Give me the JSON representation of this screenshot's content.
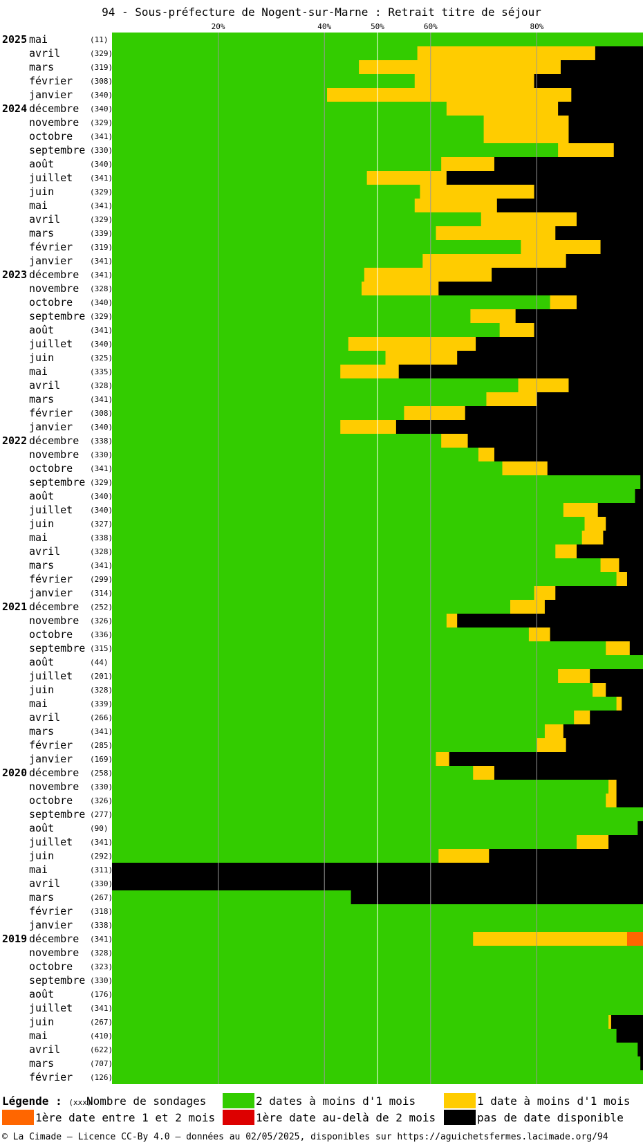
{
  "title": "94 - Sous-préfecture de Nogent-sur-Marne : Retrait titre de séjour",
  "chart_data": {
    "type": "bar",
    "orientation": "horizontal-stacked-percent",
    "x_ticks": [
      "20%",
      "40%",
      "50%",
      "60%",
      "80%"
    ],
    "x_tick_values": [
      20,
      40,
      50,
      60,
      80
    ],
    "xlim": [
      0,
      100
    ],
    "colors": {
      "green": "#33cc00",
      "yellow": "#ffcc00",
      "orange": "#ff6600",
      "red": "#dd0000",
      "black": "#000000"
    },
    "rows": [
      {
        "year": "2025",
        "month": "mai",
        "count": "(11)",
        "v": [
          100,
          0,
          0,
          0,
          0
        ]
      },
      {
        "year": "",
        "month": "avril",
        "count": "(329)",
        "v": [
          57.5,
          33.5,
          0,
          0,
          9
        ]
      },
      {
        "year": "",
        "month": "mars",
        "count": "(319)",
        "v": [
          46.5,
          38,
          0,
          0,
          15.5
        ]
      },
      {
        "year": "",
        "month": "février",
        "count": "(308)",
        "v": [
          57,
          22.5,
          0,
          0,
          20.5
        ]
      },
      {
        "year": "",
        "month": "janvier",
        "count": "(340)",
        "v": [
          40.5,
          46,
          0,
          0,
          13.5
        ]
      },
      {
        "year": "2024",
        "month": "décembre",
        "count": "(340)",
        "v": [
          63,
          21,
          0,
          0,
          16
        ]
      },
      {
        "year": "",
        "month": "novembre",
        "count": "(329)",
        "v": [
          70,
          16,
          0,
          0,
          14
        ]
      },
      {
        "year": "",
        "month": "octobre",
        "count": "(341)",
        "v": [
          70,
          16,
          0,
          0,
          14
        ]
      },
      {
        "year": "",
        "month": "septembre",
        "count": "(330)",
        "v": [
          84,
          10.5,
          0,
          0,
          5.5
        ]
      },
      {
        "year": "",
        "month": "août",
        "count": "(340)",
        "v": [
          62,
          10,
          0,
          0,
          28
        ]
      },
      {
        "year": "",
        "month": "juillet",
        "count": "(341)",
        "v": [
          48,
          15,
          0,
          0,
          37
        ]
      },
      {
        "year": "",
        "month": "juin",
        "count": "(329)",
        "v": [
          58,
          21.5,
          0,
          0,
          20.5
        ]
      },
      {
        "year": "",
        "month": "mai",
        "count": "(341)",
        "v": [
          57,
          15.5,
          0,
          0,
          27.5
        ]
      },
      {
        "year": "",
        "month": "avril",
        "count": "(329)",
        "v": [
          69.5,
          18,
          0,
          0,
          12.5
        ]
      },
      {
        "year": "",
        "month": "mars",
        "count": "(339)",
        "v": [
          61,
          22.5,
          0,
          0,
          16.5
        ]
      },
      {
        "year": "",
        "month": "février",
        "count": "(319)",
        "v": [
          77,
          15,
          0,
          0,
          8
        ]
      },
      {
        "year": "",
        "month": "janvier",
        "count": "(341)",
        "v": [
          58.5,
          27,
          0,
          0,
          14.5
        ]
      },
      {
        "year": "2023",
        "month": "décembre",
        "count": "(341)",
        "v": [
          47.5,
          24,
          0,
          0,
          28.5
        ]
      },
      {
        "year": "",
        "month": "novembre",
        "count": "(328)",
        "v": [
          47,
          14.5,
          0,
          0,
          38.5
        ]
      },
      {
        "year": "",
        "month": "octobre",
        "count": "(340)",
        "v": [
          82.5,
          5,
          0,
          0,
          12.5
        ]
      },
      {
        "year": "",
        "month": "septembre",
        "count": "(329)",
        "v": [
          67.5,
          8.5,
          0,
          0,
          24
        ]
      },
      {
        "year": "",
        "month": "août",
        "count": "(341)",
        "v": [
          73,
          6.5,
          0,
          0,
          20.5
        ]
      },
      {
        "year": "",
        "month": "juillet",
        "count": "(340)",
        "v": [
          44.5,
          24,
          0,
          0,
          31.5
        ]
      },
      {
        "year": "",
        "month": "juin",
        "count": "(325)",
        "v": [
          51.5,
          13.5,
          0,
          0,
          35
        ]
      },
      {
        "year": "",
        "month": "mai",
        "count": "(335)",
        "v": [
          43,
          11,
          0,
          0,
          46
        ]
      },
      {
        "year": "",
        "month": "avril",
        "count": "(328)",
        "v": [
          76.5,
          9.5,
          0,
          0,
          14
        ]
      },
      {
        "year": "",
        "month": "mars",
        "count": "(341)",
        "v": [
          70.5,
          9.5,
          0,
          0,
          20
        ]
      },
      {
        "year": "",
        "month": "février",
        "count": "(308)",
        "v": [
          55,
          11.5,
          0,
          0,
          33.5
        ]
      },
      {
        "year": "",
        "month": "janvier",
        "count": "(340)",
        "v": [
          43,
          10.5,
          0,
          0,
          46.5
        ]
      },
      {
        "year": "2022",
        "month": "décembre",
        "count": "(338)",
        "v": [
          62,
          5,
          0,
          0,
          33
        ]
      },
      {
        "year": "",
        "month": "novembre",
        "count": "(330)",
        "v": [
          69,
          3,
          0,
          0,
          28
        ]
      },
      {
        "year": "",
        "month": "octobre",
        "count": "(341)",
        "v": [
          73.5,
          8.5,
          0,
          0,
          18
        ]
      },
      {
        "year": "",
        "month": "septembre",
        "count": "(329)",
        "v": [
          99.5,
          0,
          0,
          0,
          0.5
        ]
      },
      {
        "year": "",
        "month": "août",
        "count": "(340)",
        "v": [
          98.5,
          0,
          0,
          0,
          1.5
        ]
      },
      {
        "year": "",
        "month": "juillet",
        "count": "(340)",
        "v": [
          85,
          6.5,
          0,
          0,
          8.5
        ]
      },
      {
        "year": "",
        "month": "juin",
        "count": "(327)",
        "v": [
          89,
          4,
          0,
          0,
          7
        ]
      },
      {
        "year": "",
        "month": "mai",
        "count": "(338)",
        "v": [
          88.5,
          4,
          0,
          0,
          7.5
        ]
      },
      {
        "year": "",
        "month": "avril",
        "count": "(328)",
        "v": [
          83.5,
          4,
          0,
          0,
          12.5
        ]
      },
      {
        "year": "",
        "month": "mars",
        "count": "(341)",
        "v": [
          92,
          3.5,
          0,
          0,
          4.5
        ]
      },
      {
        "year": "",
        "month": "février",
        "count": "(299)",
        "v": [
          95,
          2,
          0,
          0,
          3
        ]
      },
      {
        "year": "",
        "month": "janvier",
        "count": "(314)",
        "v": [
          79.5,
          4,
          0,
          0,
          16.5
        ]
      },
      {
        "year": "2021",
        "month": "décembre",
        "count": "(252)",
        "v": [
          75,
          6.5,
          0,
          0,
          18.5
        ]
      },
      {
        "year": "",
        "month": "novembre",
        "count": "(326)",
        "v": [
          63,
          2,
          0,
          0,
          35
        ]
      },
      {
        "year": "",
        "month": "octobre",
        "count": "(336)",
        "v": [
          78.5,
          4,
          0,
          0,
          17.5
        ]
      },
      {
        "year": "",
        "month": "septembre",
        "count": "(315)",
        "v": [
          93,
          4.5,
          0,
          0,
          2.5
        ]
      },
      {
        "year": "",
        "month": "août",
        "count": "(44)",
        "v": [
          100,
          0,
          0,
          0,
          0
        ]
      },
      {
        "year": "",
        "month": "juillet",
        "count": "(201)",
        "v": [
          84,
          6,
          0,
          0,
          10
        ]
      },
      {
        "year": "",
        "month": "juin",
        "count": "(328)",
        "v": [
          90.5,
          2.5,
          0,
          0,
          7
        ]
      },
      {
        "year": "",
        "month": "mai",
        "count": "(339)",
        "v": [
          95,
          1,
          0,
          0,
          4
        ]
      },
      {
        "year": "",
        "month": "avril",
        "count": "(266)",
        "v": [
          87,
          3,
          0,
          0,
          10
        ]
      },
      {
        "year": "",
        "month": "mars",
        "count": "(341)",
        "v": [
          81.5,
          3.5,
          0,
          0,
          15
        ]
      },
      {
        "year": "",
        "month": "février",
        "count": "(285)",
        "v": [
          80,
          5.5,
          0,
          0,
          14.5
        ]
      },
      {
        "year": "",
        "month": "janvier",
        "count": "(169)",
        "v": [
          61,
          2.5,
          0,
          0,
          36.5
        ]
      },
      {
        "year": "2020",
        "month": "décembre",
        "count": "(258)",
        "v": [
          68,
          4,
          0,
          0,
          28
        ]
      },
      {
        "year": "",
        "month": "novembre",
        "count": "(330)",
        "v": [
          93.5,
          1.5,
          0,
          0,
          5
        ]
      },
      {
        "year": "",
        "month": "octobre",
        "count": "(326)",
        "v": [
          93,
          2,
          0,
          0,
          5
        ]
      },
      {
        "year": "",
        "month": "septembre",
        "count": "(277)",
        "v": [
          100,
          0,
          0,
          0,
          0
        ]
      },
      {
        "year": "",
        "month": "août",
        "count": "(90)",
        "v": [
          99,
          0,
          0,
          0,
          1
        ]
      },
      {
        "year": "",
        "month": "juillet",
        "count": "(341)",
        "v": [
          87.5,
          6,
          0,
          0,
          6.5
        ]
      },
      {
        "year": "",
        "month": "juin",
        "count": "(292)",
        "v": [
          61.5,
          9.5,
          0,
          0,
          29
        ]
      },
      {
        "year": "",
        "month": "mai",
        "count": "(311)",
        "v": [
          0,
          0,
          0,
          0,
          100
        ]
      },
      {
        "year": "",
        "month": "avril",
        "count": "(330)",
        "v": [
          0,
          0,
          0,
          0,
          100
        ]
      },
      {
        "year": "",
        "month": "mars",
        "count": "(267)",
        "v": [
          45,
          0,
          0,
          0,
          55
        ]
      },
      {
        "year": "",
        "month": "février",
        "count": "(318)",
        "v": [
          100,
          0,
          0,
          0,
          0
        ]
      },
      {
        "year": "",
        "month": "janvier",
        "count": "(338)",
        "v": [
          100,
          0,
          0,
          0,
          0
        ]
      },
      {
        "year": "2019",
        "month": "décembre",
        "count": "(341)",
        "v": [
          68,
          29,
          3,
          0,
          0
        ]
      },
      {
        "year": "",
        "month": "novembre",
        "count": "(328)",
        "v": [
          100,
          0,
          0,
          0,
          0
        ]
      },
      {
        "year": "",
        "month": "octobre",
        "count": "(323)",
        "v": [
          100,
          0,
          0,
          0,
          0
        ]
      },
      {
        "year": "",
        "month": "septembre",
        "count": "(330)",
        "v": [
          100,
          0,
          0,
          0,
          0
        ]
      },
      {
        "year": "",
        "month": "août",
        "count": "(176)",
        "v": [
          100,
          0,
          0,
          0,
          0
        ]
      },
      {
        "year": "",
        "month": "juillet",
        "count": "(341)",
        "v": [
          100,
          0,
          0,
          0,
          0
        ]
      },
      {
        "year": "",
        "month": "juin",
        "count": "(267)",
        "v": [
          93.5,
          0.5,
          0,
          0,
          6
        ]
      },
      {
        "year": "",
        "month": "mai",
        "count": "(410)",
        "v": [
          95,
          0,
          0,
          0,
          5
        ]
      },
      {
        "year": "",
        "month": "avril",
        "count": "(622)",
        "v": [
          99,
          0,
          0,
          0,
          1
        ]
      },
      {
        "year": "",
        "month": "mars",
        "count": "(707)",
        "v": [
          99.5,
          0,
          0,
          0,
          0.5
        ]
      },
      {
        "year": "",
        "month": "février",
        "count": "(126)",
        "v": [
          100,
          0,
          0,
          0,
          0
        ]
      }
    ]
  },
  "legend": {
    "title": "Légende :",
    "count_hint": "(xxx)",
    "count_label": "Nombre de sondages",
    "items": [
      {
        "label": "2 dates à moins d'1 mois",
        "color": "#33cc00"
      },
      {
        "label": "1 date à moins d'1 mois",
        "color": "#ffcc00"
      },
      {
        "label": "1ère date entre 1 et 2 mois",
        "color": "#ff6600"
      },
      {
        "label": "1ère date au-delà de 2 mois",
        "color": "#dd0000"
      },
      {
        "label": "pas de date disponible",
        "color": "#000000"
      }
    ]
  },
  "footer": "© La Cimade — Licence CC-By 4.0 — données au 02/05/2025, disponibles sur https://aguichetsfermes.lacimade.org/94"
}
